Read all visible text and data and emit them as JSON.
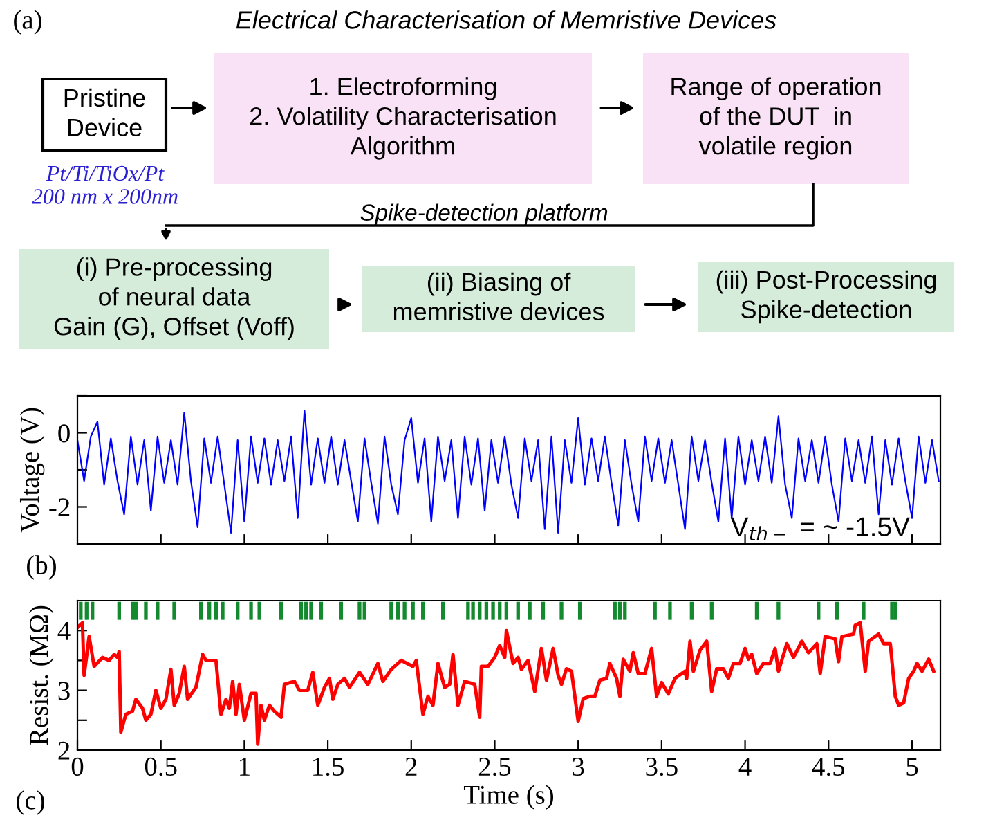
{
  "chart_data": [
    {
      "type": "other",
      "title": "Electrical Characterisation of Memristive Devices",
      "annotations": [
        "(a)",
        "Pristine\nDevice",
        "1. Electroforming\n2. Volatility Characterisation\nAlgorithm",
        "Range of operation\nof the DUT  in\nvolatile region",
        "Pt/Ti/TiOx/Pt\n200 nm x 200nm",
        "Spike-detection platform",
        "(i) Pre-processing\nof neural data\nGain (G), Offset (Voff)",
        "(ii) Biasing of\nmemristive devices",
        "(iii) Post-Processing\nSpike-detection"
      ],
      "colors": [
        null,
        "#ffffff",
        "#f9e1f6",
        "#f9e1f6",
        "#2b1fd6",
        null,
        "#d4ecd9",
        "#d4ecd9",
        "#d4ecd9"
      ]
    },
    {
      "type": "line",
      "ylabel": "Voltage (V)",
      "tick_labels": "y",
      "xlim": [
        0,
        5.17
      ],
      "xticks": [
        {
          "value": 0.5,
          "label": null
        },
        {
          "value": 1,
          "label": null
        },
        {
          "value": 1.5,
          "label": null
        },
        {
          "value": 2,
          "label": null
        },
        {
          "value": 2.5,
          "label": null
        },
        {
          "value": 3,
          "label": null
        },
        {
          "value": 3.5,
          "label": null
        },
        {
          "value": 4,
          "label": null
        },
        {
          "value": 4.5,
          "label": null
        },
        {
          "value": 5,
          "label": null
        }
      ],
      "ylim": [
        -3,
        1
      ],
      "yticks": [
        {
          "value": 1,
          "label": null
        },
        0,
        {
          "value": -1,
          "label": null
        },
        -2,
        {
          "value": -3,
          "label": null
        }
      ],
      "annotations": [
        "V$_{th−}$ = ~ -1.5V",
        "(b)"
      ],
      "x": [
        0,
        0.04,
        0.08,
        0.12,
        0.16,
        0.2,
        0.24,
        0.28,
        0.32,
        0.36,
        0.4,
        0.44,
        0.48,
        0.52,
        0.56,
        0.6,
        0.64,
        0.68,
        0.72,
        0.76,
        0.8,
        0.84,
        0.88,
        0.92,
        0.96,
        1.0,
        1.04,
        1.08,
        1.12,
        1.16,
        1.2,
        1.24,
        1.28,
        1.32,
        1.36,
        1.4,
        1.44,
        1.48,
        1.52,
        1.56,
        1.6,
        1.64,
        1.68,
        1.72,
        1.76,
        1.8,
        1.84,
        1.88,
        1.92,
        1.96,
        2.0,
        2.04,
        2.08,
        2.12,
        2.16,
        2.2,
        2.24,
        2.28,
        2.32,
        2.36,
        2.4,
        2.44,
        2.48,
        2.52,
        2.56,
        2.6,
        2.64,
        2.68,
        2.72,
        2.76,
        2.8,
        2.84,
        2.88,
        2.92,
        2.96,
        3.0,
        3.04,
        3.08,
        3.12,
        3.16,
        3.2,
        3.24,
        3.28,
        3.32,
        3.36,
        3.4,
        3.44,
        3.48,
        3.52,
        3.56,
        3.6,
        3.64,
        3.68,
        3.72,
        3.76,
        3.8,
        3.84,
        3.88,
        3.92,
        3.96,
        4.0,
        4.04,
        4.08,
        4.12,
        4.16,
        4.2,
        4.24,
        4.28,
        4.32,
        4.36,
        4.4,
        4.44,
        4.48,
        4.52,
        4.56,
        4.6,
        4.64,
        4.68,
        4.72,
        4.76,
        4.8,
        4.84,
        4.88,
        4.92,
        4.96,
        5.0,
        5.04,
        5.08,
        5.12,
        5.16
      ],
      "series": [
        {
          "color": "#0000ff",
          "values": [
            -0.2,
            -1.3,
            -0.1,
            0.3,
            -1.4,
            -0.15,
            -1.3,
            -2.2,
            -0.1,
            -1.4,
            -0.2,
            -2.1,
            -0.1,
            -1.35,
            -0.2,
            -1.4,
            0.55,
            -1.3,
            -2.55,
            -0.15,
            -1.35,
            -0.1,
            -1.4,
            -2.7,
            -0.2,
            -2.4,
            -0.1,
            -1.35,
            -0.15,
            -1.4,
            -0.2,
            -1.3,
            -0.1,
            -2.3,
            0.6,
            -1.4,
            -0.15,
            -1.35,
            -0.1,
            -1.4,
            -0.2,
            -1.3,
            -2.4,
            -0.15,
            -1.35,
            -2.45,
            -0.1,
            -1.4,
            -2.2,
            -0.2,
            0.4,
            -1.35,
            -0.15,
            -2.4,
            -0.1,
            -1.3,
            -0.2,
            -2.3,
            -0.1,
            -1.4,
            -0.15,
            -2.1,
            -0.2,
            -1.35,
            -0.1,
            -1.4,
            -2.3,
            -0.15,
            -1.3,
            -0.2,
            -2.6,
            -0.1,
            -2.7,
            -0.2,
            -1.35,
            0.4,
            -1.4,
            -0.15,
            -1.3,
            -0.1,
            -1.35,
            -2.5,
            -0.2,
            -1.4,
            -2.4,
            -0.1,
            -1.3,
            -0.15,
            -1.35,
            -0.2,
            -1.4,
            -2.6,
            -0.1,
            -1.3,
            -0.2,
            -1.35,
            -2.4,
            -0.15,
            -2.3,
            -0.1,
            -1.4,
            -0.2,
            -1.3,
            -0.1,
            -1.35,
            0.45,
            -1.4,
            -2.3,
            -0.15,
            -1.3,
            -0.2,
            -1.35,
            -0.1,
            -1.4,
            -2.4,
            -0.15,
            -1.3,
            -0.2,
            -1.35,
            -0.1,
            -2.2,
            -0.2,
            -1.4,
            -0.15,
            -1.3,
            -2.3,
            -0.1,
            -1.35,
            -0.2,
            -1.3
          ]
        }
      ]
    },
    {
      "type": "line",
      "xlabel": "Time (s)",
      "ylabel": "Resist. (MΩ)",
      "xlim": [
        0,
        5.17
      ],
      "xticks": [
        0,
        0.5,
        1,
        1.5,
        2,
        2.5,
        3,
        3.5,
        4,
        4.5,
        5
      ],
      "ylim": [
        2,
        4.5
      ],
      "yticks": [
        2,
        {
          "value": 2.5,
          "label": null
        },
        3,
        {
          "value": 3.5,
          "label": null
        },
        4
      ],
      "annotations": [
        "(c)"
      ],
      "series": [
        {
          "type": "line",
          "color": "#ff0000",
          "x": [
            0.0,
            0.03,
            0.04,
            0.07,
            0.1,
            0.15,
            0.19,
            0.22,
            0.24,
            0.25,
            0.26,
            0.29,
            0.33,
            0.35,
            0.39,
            0.41,
            0.44,
            0.47,
            0.5,
            0.53,
            0.56,
            0.58,
            0.61,
            0.64,
            0.66,
            0.71,
            0.75,
            0.77,
            0.83,
            0.86,
            0.89,
            0.91,
            0.93,
            0.95,
            0.97,
            0.99,
            1.0,
            1.04,
            1.07,
            1.08,
            1.1,
            1.12,
            1.15,
            1.18,
            1.22,
            1.24,
            1.3,
            1.33,
            1.38,
            1.41,
            1.44,
            1.48,
            1.51,
            1.53,
            1.56,
            1.6,
            1.63,
            1.69,
            1.74,
            1.8,
            1.83,
            1.88,
            1.94,
            2.01,
            2.03,
            2.07,
            2.1,
            2.13,
            2.16,
            2.2,
            2.23,
            2.25,
            2.28,
            2.32,
            2.38,
            2.41,
            2.42,
            2.46,
            2.5,
            2.53,
            2.56,
            2.57,
            2.61,
            2.64,
            2.66,
            2.7,
            2.74,
            2.78,
            2.81,
            2.85,
            2.88,
            2.9,
            2.93,
            2.96,
            3.0,
            3.03,
            3.07,
            3.1,
            3.13,
            3.17,
            3.19,
            3.23,
            3.25,
            3.27,
            3.31,
            3.33,
            3.36,
            3.4,
            3.44,
            3.47,
            3.5,
            3.54,
            3.58,
            3.64,
            3.65,
            3.67,
            3.69,
            3.73,
            3.77,
            3.8,
            3.83,
            3.87,
            3.9,
            3.93,
            3.97,
            4.0,
            4.02,
            4.04,
            4.07,
            4.11,
            4.15,
            4.18,
            4.2,
            4.25,
            4.29,
            4.34,
            4.38,
            4.43,
            4.45,
            4.48,
            4.54,
            4.56,
            4.58,
            4.65,
            4.66,
            4.69,
            4.72,
            4.74,
            4.8,
            4.83,
            4.87,
            4.9,
            4.92,
            4.95,
            4.98,
            5.01,
            5.03,
            5.06,
            5.1,
            5.13
          ],
          "values": [
            4.05,
            4.13,
            3.25,
            3.9,
            3.4,
            3.55,
            3.5,
            3.6,
            3.55,
            3.65,
            2.3,
            2.6,
            2.65,
            2.85,
            2.7,
            2.5,
            2.6,
            3.0,
            2.7,
            2.85,
            3.35,
            2.75,
            2.95,
            3.4,
            2.85,
            3.05,
            3.6,
            3.5,
            3.5,
            2.6,
            2.85,
            2.7,
            3.15,
            2.6,
            3.1,
            2.7,
            2.5,
            2.95,
            2.95,
            2.1,
            2.75,
            2.5,
            2.75,
            2.65,
            2.55,
            3.1,
            3.15,
            3.0,
            3.0,
            3.3,
            2.75,
            3.05,
            3.2,
            2.85,
            3.1,
            3.2,
            3.05,
            3.3,
            3.1,
            3.45,
            3.15,
            3.35,
            3.5,
            3.4,
            3.5,
            2.6,
            2.9,
            2.75,
            3.45,
            3.05,
            3.1,
            3.6,
            2.75,
            3.15,
            3.1,
            2.55,
            3.4,
            3.4,
            3.55,
            3.75,
            3.55,
            4.0,
            3.45,
            3.55,
            3.35,
            3.5,
            2.98,
            3.7,
            3.17,
            3.7,
            3.25,
            3.1,
            3.36,
            3.32,
            2.48,
            2.86,
            2.9,
            2.9,
            3.17,
            3.2,
            3.45,
            3.2,
            2.9,
            3.52,
            3.32,
            3.63,
            3.28,
            3.28,
            3.7,
            2.9,
            3.13,
            2.94,
            3.2,
            3.32,
            3.2,
            3.82,
            3.32,
            3.67,
            3.82,
            2.98,
            3.36,
            3.36,
            3.2,
            3.45,
            3.45,
            3.7,
            3.52,
            3.6,
            3.28,
            3.45,
            3.45,
            3.7,
            3.32,
            3.78,
            3.55,
            3.82,
            3.63,
            3.78,
            3.28,
            3.9,
            3.86,
            3.48,
            3.9,
            3.94,
            4.09,
            4.13,
            3.32,
            3.82,
            3.94,
            3.78,
            3.78,
            2.9,
            2.75,
            2.79,
            3.2,
            3.32,
            3.45,
            3.32,
            3.52,
            3.32
          ]
        },
        {
          "type": "bar",
          "color": "#138a2e",
          "x": [
            0.02,
            0.055,
            0.09,
            0.25,
            0.33,
            0.35,
            0.41,
            0.48,
            0.58,
            0.74,
            0.79,
            0.83,
            0.87,
            0.96,
            1.04,
            1.09,
            1.22,
            1.34,
            1.37,
            1.4,
            1.46,
            1.58,
            1.69,
            1.72,
            1.88,
            1.92,
            1.96,
            2.01,
            2.07,
            2.19,
            2.34,
            2.37,
            2.41,
            2.45,
            2.49,
            2.53,
            2.57,
            2.64,
            2.71,
            2.79,
            2.9,
            3.01,
            3.22,
            3.25,
            3.28,
            3.46,
            3.55,
            3.68,
            3.8,
            4.07,
            4.2,
            4.44,
            4.55,
            4.71,
            4.88,
            4.9
          ],
          "base": [
            4.18,
            4.18,
            4.18,
            4.18,
            4.18,
            4.18,
            4.18,
            4.18,
            4.18,
            4.18,
            4.18,
            4.18,
            4.18,
            4.18,
            4.18,
            4.18,
            4.18,
            4.18,
            4.18,
            4.18,
            4.18,
            4.18,
            4.18,
            4.18,
            4.18,
            4.18,
            4.18,
            4.18,
            4.18,
            4.18,
            4.18,
            4.18,
            4.18,
            4.18,
            4.18,
            4.18,
            4.18,
            4.18,
            4.18,
            4.18,
            4.18,
            4.18,
            4.18,
            4.18,
            4.18,
            4.18,
            4.18,
            4.18,
            4.18,
            4.18,
            4.18,
            4.18,
            4.18,
            4.18,
            4.18,
            4.18
          ],
          "values": [
            0.3,
            0.3,
            0.3,
            0.3,
            0.3,
            0.3,
            0.3,
            0.3,
            0.3,
            0.3,
            0.3,
            0.3,
            0.3,
            0.3,
            0.3,
            0.3,
            0.3,
            0.3,
            0.3,
            0.3,
            0.3,
            0.3,
            0.3,
            0.3,
            0.3,
            0.3,
            0.3,
            0.3,
            0.3,
            0.3,
            0.3,
            0.3,
            0.3,
            0.3,
            0.3,
            0.3,
            0.3,
            0.3,
            0.3,
            0.3,
            0.3,
            0.3,
            0.3,
            0.3,
            0.3,
            0.3,
            0.3,
            0.3,
            0.3,
            0.3,
            0.3,
            0.3,
            0.3,
            0.3,
            0.3,
            0.3
          ]
        }
      ]
    }
  ]
}
